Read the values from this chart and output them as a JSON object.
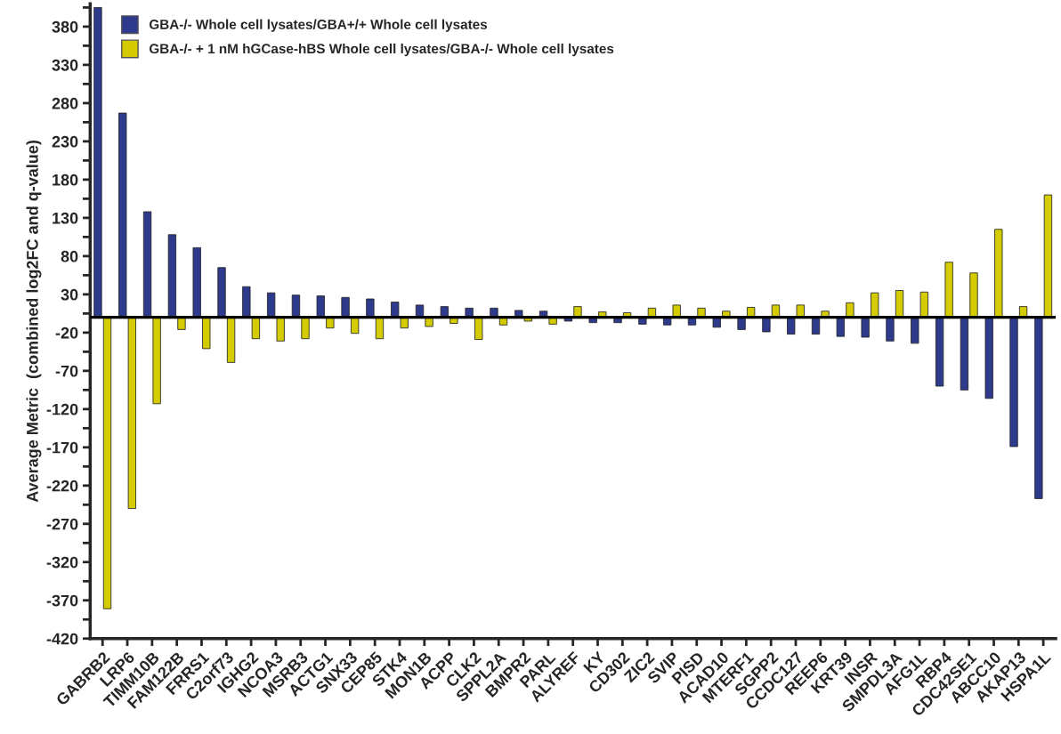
{
  "chart_data": {
    "type": "bar",
    "ylabel": "Average Metric  (combined log2FC and q-value)",
    "categories": [
      "GABRB2",
      "LRP6",
      "TIMM10B",
      "FAM122B",
      "FRRS1",
      "C2orf73",
      "IGHG2",
      "NCOA3",
      "MSRB3",
      "ACTG1",
      "SNX33",
      "CEP85",
      "STK4",
      "MON1B",
      "ACPP",
      "CLK2",
      "SPPL2A",
      "BMPR2",
      "PARL",
      "ALYREF",
      "KY",
      "CD302",
      "ZIC2",
      "SVIP",
      "PISD",
      "ACAD10",
      "MTERF1",
      "SGPP2",
      "CCDC127",
      "REEP6",
      "KRT39",
      "INSR",
      "SMPDL3A",
      "AFG1L",
      "RBP4",
      "CDC42SE1",
      "ABCC10",
      "AKAP13",
      "HSPA1L"
    ],
    "series": [
      {
        "name": "GBA-/- Whole cell lysates/GBA+/+ Whole cell lysates",
        "color": "#2e3a8c",
        "values": [
          405,
          267,
          138,
          108,
          91,
          65,
          40,
          32,
          29,
          28,
          26,
          24,
          20,
          16,
          14,
          12,
          12,
          9,
          8,
          -5,
          -7,
          -7,
          -9,
          -10,
          -10,
          -13,
          -16,
          -19,
          -22,
          -22,
          -25,
          -26,
          -31,
          -34,
          -90,
          -95,
          -106,
          -169,
          -237
        ]
      },
      {
        "name": "GBA-/- + 1 nM hGCase-hBS Whole cell lysates/GBA-/- Whole cell lysates",
        "color": "#d4cc00",
        "values": [
          -381,
          -250,
          -113,
          -16,
          -41,
          -59,
          -28,
          -31,
          -28,
          -14,
          -21,
          -28,
          -14,
          -12,
          -8,
          -29,
          -10,
          -5,
          -9,
          14,
          7,
          6,
          12,
          16,
          12,
          8,
          13,
          16,
          16,
          8,
          19,
          32,
          35,
          33,
          72,
          58,
          115,
          14,
          160
        ]
      }
    ],
    "ylim": [
      -420,
      410
    ],
    "yticks": [
      {
        "value": -420,
        "label": "-420"
      },
      {
        "value": -395,
        "label": null
      },
      {
        "value": -370,
        "label": "-370"
      },
      {
        "value": -345,
        "label": null
      },
      {
        "value": -320,
        "label": "-320"
      },
      {
        "value": -295,
        "label": null
      },
      {
        "value": -270,
        "label": "-270"
      },
      {
        "value": -245,
        "label": null
      },
      {
        "value": -220,
        "label": "-220"
      },
      {
        "value": -195,
        "label": null
      },
      {
        "value": -170,
        "label": "-170"
      },
      {
        "value": -145,
        "label": null
      },
      {
        "value": -120,
        "label": "-120"
      },
      {
        "value": -95,
        "label": null
      },
      {
        "value": -70,
        "label": "-70"
      },
      {
        "value": -45,
        "label": null
      },
      {
        "value": -20,
        "label": "-20"
      },
      {
        "value": 5,
        "label": null
      },
      30,
      {
        "value": 55,
        "label": null
      },
      80,
      {
        "value": 105,
        "label": null
      },
      130,
      {
        "value": 155,
        "label": null
      },
      180,
      {
        "value": 205,
        "label": null
      },
      230,
      {
        "value": 255,
        "label": null
      },
      280,
      {
        "value": 305,
        "label": null
      },
      330,
      {
        "value": 355,
        "label": null
      },
      380,
      {
        "value": 405,
        "label": null
      }
    ],
    "ref_lines": [
      {
        "axis": "y",
        "value": 0,
        "color": "#000000"
      }
    ],
    "grid": false,
    "legend": "top left"
  }
}
